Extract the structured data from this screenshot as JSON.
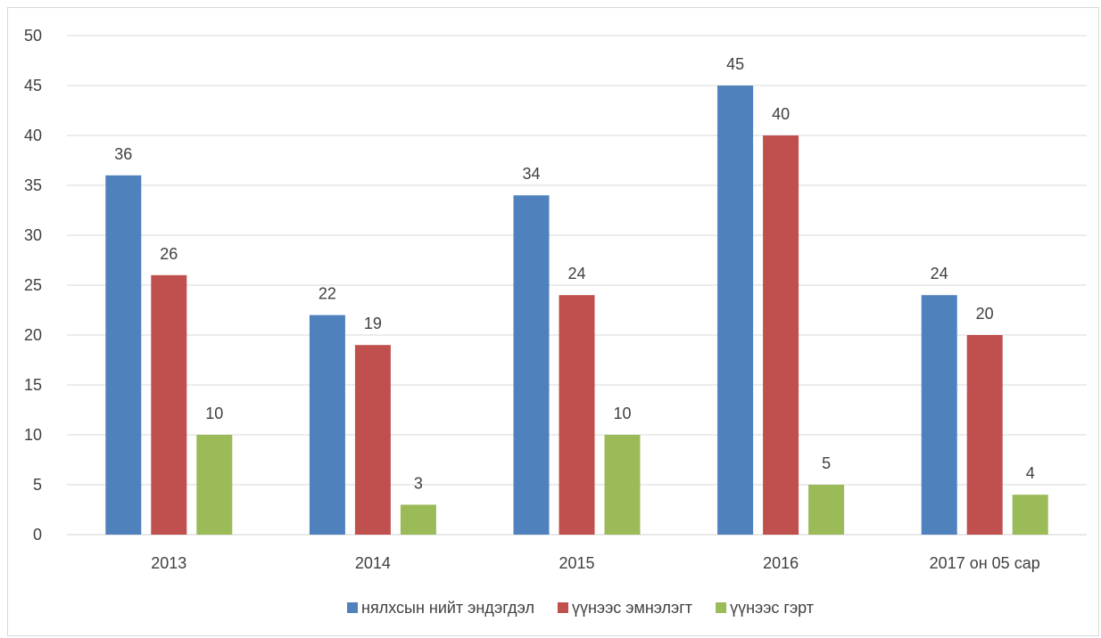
{
  "chart_data": {
    "type": "bar",
    "title": "",
    "xlabel": "",
    "ylabel": "",
    "categories": [
      "2013",
      "2014",
      "2015",
      "2016",
      "2017 он 05 сар"
    ],
    "series": [
      {
        "name": "нялхсын нийт эндэгдэл",
        "color": "#4f81bd",
        "values": [
          36,
          22,
          34,
          45,
          24
        ]
      },
      {
        "name": "үүнээс эмнэлэгт",
        "color": "#c0504d",
        "values": [
          26,
          19,
          24,
          40,
          20
        ]
      },
      {
        "name": "үүнээс гэрт",
        "color": "#9bbb59",
        "values": [
          10,
          3,
          10,
          5,
          4
        ]
      }
    ],
    "ylim": [
      0,
      50
    ],
    "yticks": [
      0,
      5,
      10,
      15,
      20,
      25,
      30,
      35,
      40,
      45,
      50
    ],
    "grid": true,
    "legend_position": "bottom",
    "data_labels": true
  }
}
